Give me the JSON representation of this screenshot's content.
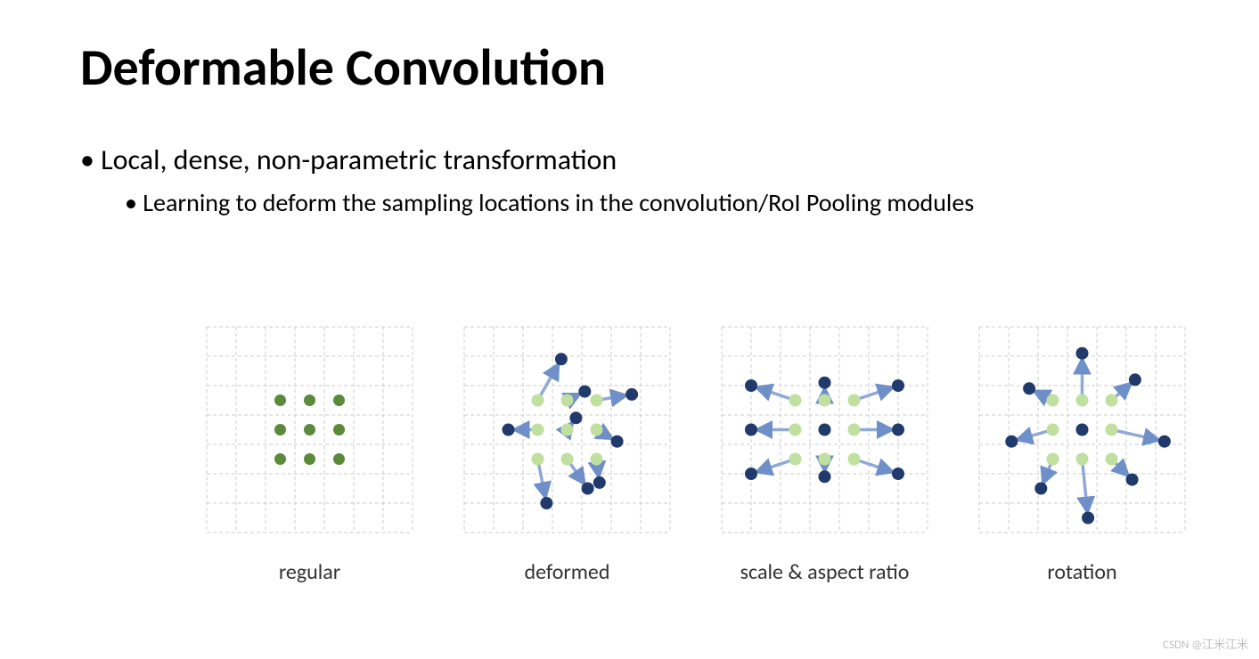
{
  "title": "Deformable Convolution",
  "bullet1": "Local, dense, non-parametric transformation",
  "bullet2": "Learning to deform the sampling locations in the convolution/RoI Pooling modules",
  "watermark": "CSDN @江米江米",
  "grid": {
    "cells": 7,
    "cell_size": 33,
    "line_color": "#cccccc",
    "dash": "4,3",
    "background": "#ffffff"
  },
  "colors": {
    "green_solid": "#5b8a3a",
    "green_light": "#bfe09f",
    "blue_dot": "#1f3a6b",
    "arrow": "#8fa9d6",
    "arrow_head": "#6e8fc8"
  },
  "dot_radius": 6.5,
  "light_dot_radius": 7,
  "blue_dot_radius": 7,
  "arrow_width": 3.5,
  "base_grid_positions": [
    [
      2,
      2
    ],
    [
      3,
      2
    ],
    [
      4,
      2
    ],
    [
      2,
      3
    ],
    [
      3,
      3
    ],
    [
      4,
      3
    ],
    [
      2,
      4
    ],
    [
      3,
      4
    ],
    [
      4,
      4
    ]
  ],
  "panels": [
    {
      "id": "regular",
      "label": "regular",
      "show_origins": false,
      "green_dots_solid": true,
      "targets": []
    },
    {
      "id": "deformed",
      "label": "deformed",
      "show_origins": true,
      "green_dots_solid": false,
      "targets": [
        [
          2.8,
          0.6
        ],
        [
          3.6,
          1.7
        ],
        [
          5.2,
          1.8
        ],
        [
          1.0,
          3.0
        ],
        [
          3.3,
          2.6
        ],
        [
          4.7,
          3.4
        ],
        [
          2.3,
          5.5
        ],
        [
          3.7,
          5.0
        ],
        [
          4.1,
          4.8
        ]
      ]
    },
    {
      "id": "scale",
      "label": "scale & aspect ratio",
      "show_origins": true,
      "green_dots_solid": false,
      "targets": [
        [
          0.5,
          1.5
        ],
        [
          3.0,
          1.4
        ],
        [
          5.5,
          1.5
        ],
        [
          0.5,
          3.0
        ],
        [
          3.0,
          3.0
        ],
        [
          5.5,
          3.0
        ],
        [
          0.5,
          4.5
        ],
        [
          3.0,
          4.6
        ],
        [
          5.5,
          4.5
        ]
      ]
    },
    {
      "id": "rotation",
      "label": "rotation",
      "show_origins": true,
      "green_dots_solid": false,
      "targets": [
        [
          1.2,
          1.6
        ],
        [
          3.0,
          0.4
        ],
        [
          4.8,
          1.3
        ],
        [
          0.6,
          3.4
        ],
        [
          3.0,
          3.0
        ],
        [
          5.8,
          3.4
        ],
        [
          1.6,
          5.0
        ],
        [
          3.2,
          6.0
        ],
        [
          4.7,
          4.7
        ]
      ]
    }
  ]
}
